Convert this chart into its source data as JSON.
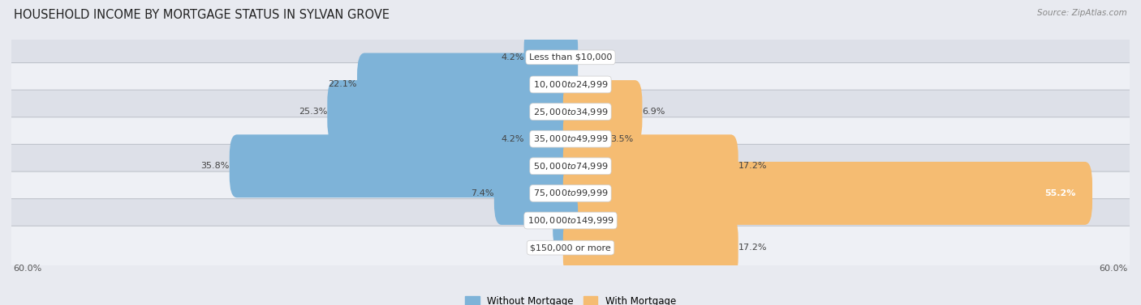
{
  "title": "HOUSEHOLD INCOME BY MORTGAGE STATUS IN SYLVAN GROVE",
  "source": "Source: ZipAtlas.com",
  "categories": [
    "Less than $10,000",
    "$10,000 to $24,999",
    "$25,000 to $34,999",
    "$35,000 to $49,999",
    "$50,000 to $74,999",
    "$75,000 to $99,999",
    "$100,000 to $149,999",
    "$150,000 or more"
  ],
  "without_mortgage": [
    4.2,
    22.1,
    25.3,
    4.2,
    35.8,
    7.4,
    1.1,
    0.0
  ],
  "with_mortgage": [
    0.0,
    0.0,
    6.9,
    3.5,
    17.2,
    55.2,
    0.0,
    17.2
  ],
  "color_without": "#7eb3d8",
  "color_with": "#f5bc72",
  "axis_max": 60.0,
  "legend_labels": [
    "Without Mortgage",
    "With Mortgage"
  ],
  "background_color": "#e8eaf0",
  "row_bg_even": "#dde0e8",
  "row_bg_odd": "#eef0f5",
  "title_fontsize": 10.5,
  "label_fontsize": 8,
  "value_fontsize": 8
}
